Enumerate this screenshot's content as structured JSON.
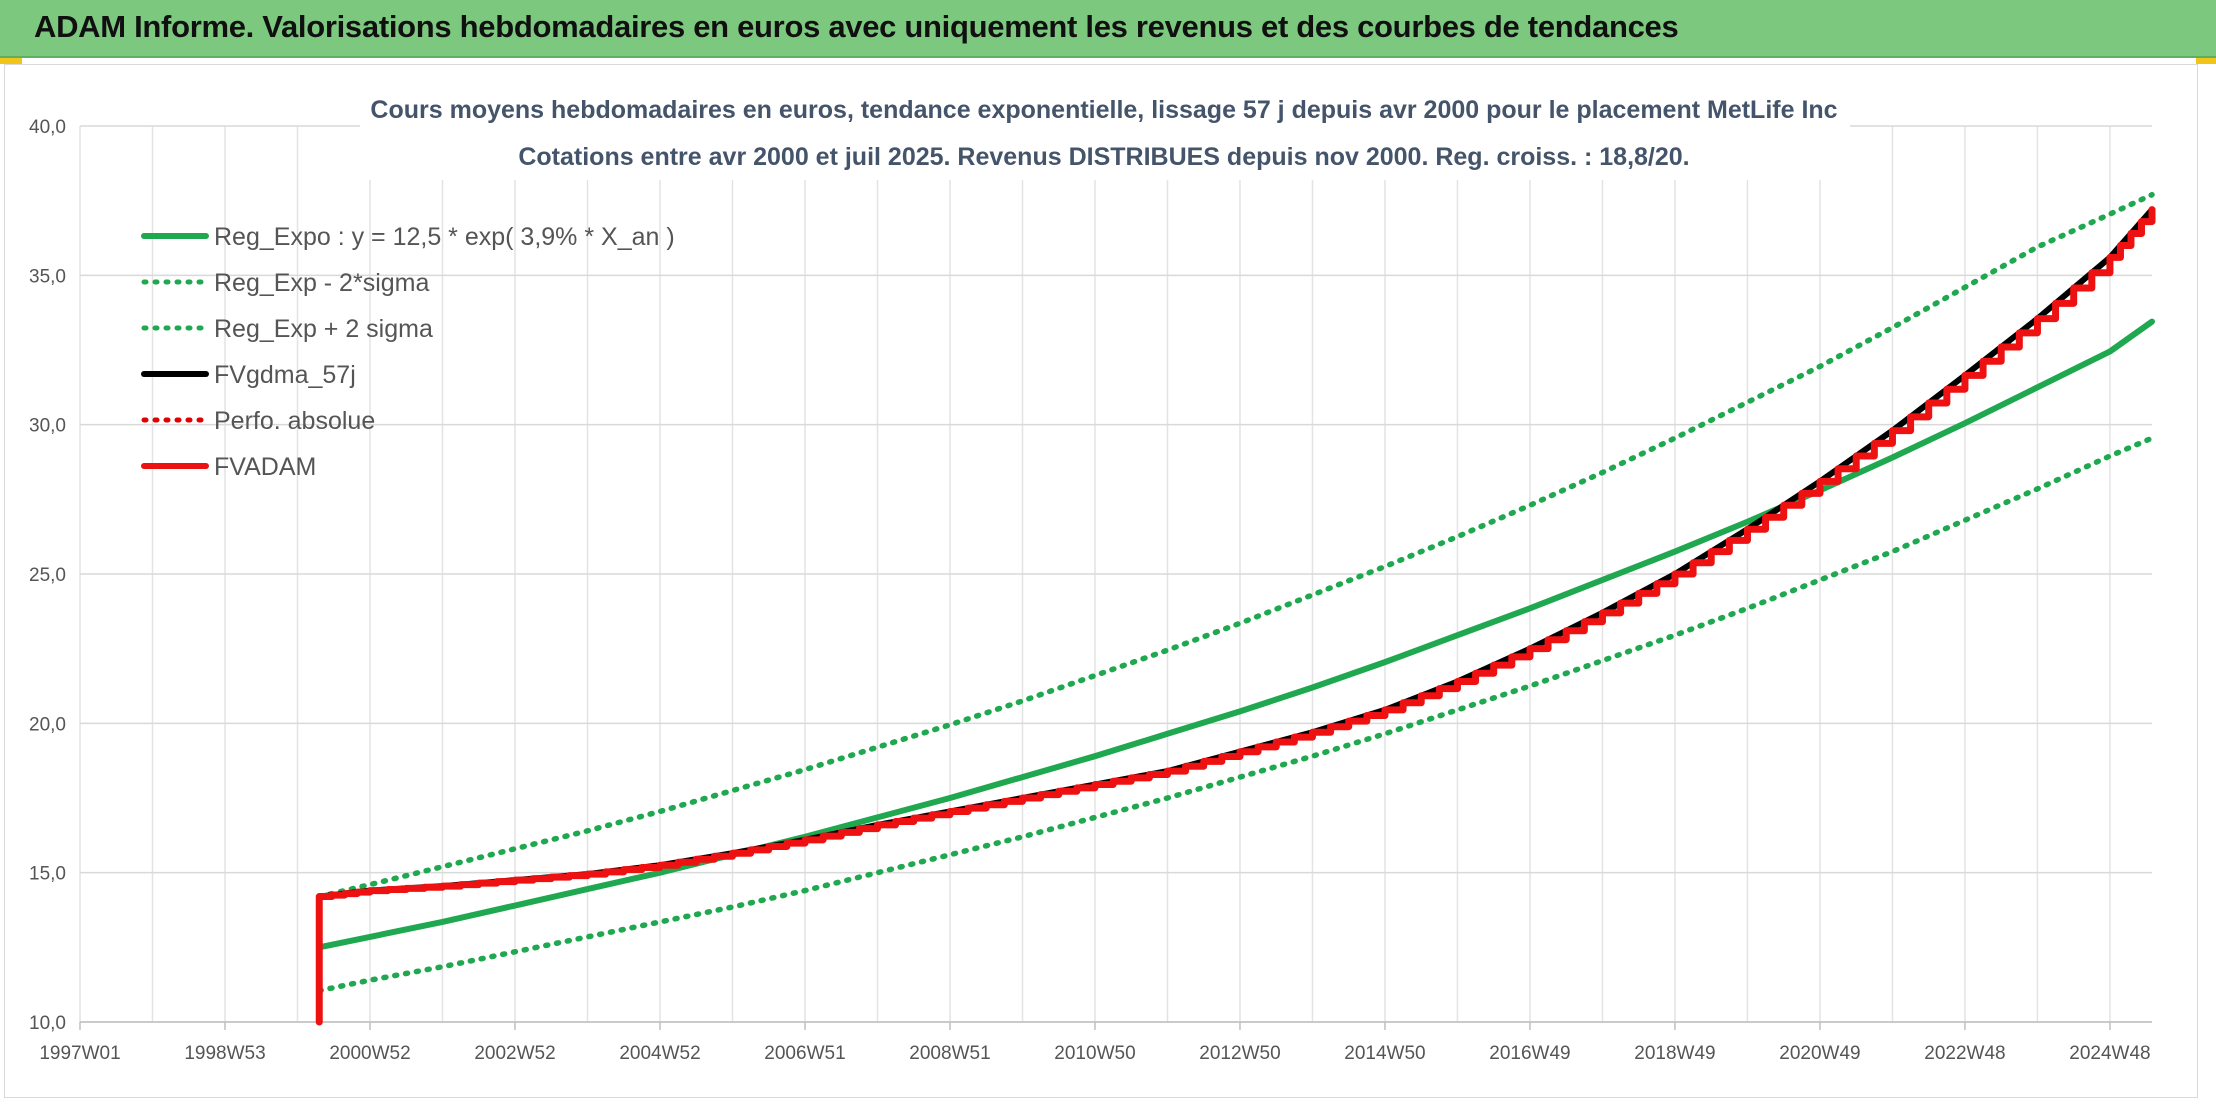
{
  "page": {
    "header_title": "ADAM Informe. Valorisations hebdomadaires en euros avec uniquement les revenus et des courbes de tendances"
  },
  "chart_data": {
    "type": "line",
    "title_line1": "Cours moyens hebdomadaires en euros, tendance exponentielle, lissage 57 j depuis avr 2000 pour le placement MetLife Inc",
    "title_line2": "Cotations entre avr 2000 et juil 2025. Revenus DISTRIBUES depuis nov 2000. Reg. croiss. : 18,8/20.",
    "x_tick_labels": [
      "1997W01",
      "1998W53",
      "2000W52",
      "2002W52",
      "2004W52",
      "2006W51",
      "2008W51",
      "2010W50",
      "2012W50",
      "2014W50",
      "2016W49",
      "2018W49",
      "2020W49",
      "2022W48",
      "2024W48"
    ],
    "x_tick_years": [
      1997.0,
      1999.0,
      2001.0,
      2003.0,
      2005.0,
      2007.0,
      2009.0,
      2011.0,
      2013.0,
      2015.0,
      2017.0,
      2019.0,
      2021.0,
      2023.0,
      2025.0
    ],
    "xlim": [
      1997.0,
      2025.58
    ],
    "ylim": [
      10,
      40
    ],
    "y_ticks": [
      10,
      15,
      20,
      25,
      30,
      35,
      40
    ],
    "y_tick_labels": [
      "10,0",
      "15,0",
      "20,0",
      "25,0",
      "30,0",
      "35,0",
      "40,0"
    ],
    "grid": true,
    "legend_position": "top-left",
    "series": [
      {
        "name": "Reg_Expo : y = 12,5 * exp( 3,9% *  X_an )",
        "style": "solid",
        "color": "#1fa84f",
        "x": [
          2000.3,
          2001,
          2002,
          2003,
          2004,
          2005,
          2006,
          2007,
          2008,
          2009,
          2010,
          2011,
          2012,
          2013,
          2014,
          2015,
          2016,
          2017,
          2018,
          2019,
          2020,
          2021,
          2022,
          2023,
          2024,
          2025,
          2025.58
        ],
        "values": [
          12.5,
          12.85,
          13.35,
          13.9,
          14.45,
          15.0,
          15.6,
          16.2,
          16.85,
          17.5,
          18.2,
          18.9,
          19.65,
          20.4,
          21.2,
          22.05,
          22.95,
          23.85,
          24.8,
          25.75,
          26.75,
          27.8,
          28.9,
          30.05,
          31.25,
          32.45,
          33.45
        ]
      },
      {
        "name": "Reg_Exp - 2*sigma",
        "style": "dotted",
        "color": "#1fa84f",
        "x": [
          2000.3,
          2001,
          2002,
          2003,
          2004,
          2005,
          2006,
          2007,
          2008,
          2009,
          2010,
          2011,
          2012,
          2013,
          2014,
          2015,
          2016,
          2017,
          2018,
          2019,
          2020,
          2021,
          2022,
          2023,
          2024,
          2025,
          2025.58
        ],
        "values": [
          11.05,
          11.4,
          11.85,
          12.35,
          12.85,
          13.35,
          13.85,
          14.4,
          15.0,
          15.6,
          16.2,
          16.85,
          17.5,
          18.2,
          18.9,
          19.65,
          20.45,
          21.25,
          22.1,
          22.95,
          23.85,
          24.8,
          25.75,
          26.8,
          27.85,
          28.95,
          29.55
        ]
      },
      {
        "name": "Reg_Exp + 2 sigma",
        "style": "dotted",
        "color": "#1fa84f",
        "x": [
          2000.3,
          2001,
          2002,
          2003,
          2004,
          2005,
          2006,
          2007,
          2008,
          2009,
          2010,
          2011,
          2012,
          2013,
          2014,
          2015,
          2016,
          2017,
          2018,
          2019,
          2020,
          2021,
          2022,
          2023,
          2024,
          2025,
          2025.58
        ],
        "values": [
          14.2,
          14.6,
          15.2,
          15.8,
          16.4,
          17.05,
          17.75,
          18.45,
          19.2,
          19.95,
          20.75,
          21.6,
          22.45,
          23.35,
          24.3,
          25.25,
          26.25,
          27.3,
          28.4,
          29.55,
          30.75,
          31.95,
          33.25,
          34.6,
          35.95,
          37.05,
          37.7
        ]
      },
      {
        "name": "FVgdma_57j",
        "style": "solid",
        "color": "#000000",
        "x": [
          2000.3,
          2001,
          2002,
          2003,
          2004,
          2005,
          2006,
          2007,
          2008,
          2009,
          2010,
          2011,
          2012,
          2013,
          2014,
          2015,
          2016,
          2017,
          2018,
          2019,
          2020,
          2021,
          2022,
          2023,
          2024,
          2025,
          2025.58
        ],
        "values": [
          14.2,
          14.4,
          14.55,
          14.75,
          14.95,
          15.25,
          15.65,
          16.1,
          16.6,
          17.05,
          17.5,
          17.95,
          18.4,
          19.05,
          19.7,
          20.45,
          21.4,
          22.5,
          23.7,
          25.0,
          26.5,
          28.1,
          29.8,
          31.65,
          33.55,
          35.6,
          37.2
        ]
      },
      {
        "name": "Perfo. absolue",
        "style": "dotted",
        "color": "#e00000",
        "x": [],
        "values": []
      },
      {
        "name": "FVADAM",
        "style": "solid-step",
        "color": "#ee1111",
        "x": [
          2000.3,
          2000.3,
          2001,
          2002,
          2003,
          2004,
          2005,
          2006,
          2007,
          2008,
          2009,
          2010,
          2011,
          2012,
          2013,
          2014,
          2015,
          2016,
          2017,
          2018,
          2019,
          2020,
          2021,
          2022,
          2023,
          2024,
          2025,
          2025.58
        ],
        "values": [
          10.0,
          14.2,
          14.4,
          14.55,
          14.75,
          14.95,
          15.25,
          15.65,
          16.1,
          16.6,
          17.05,
          17.5,
          17.95,
          18.4,
          19.05,
          19.7,
          20.45,
          21.4,
          22.5,
          23.7,
          25.0,
          26.5,
          28.1,
          29.8,
          31.65,
          33.55,
          35.6,
          37.2
        ]
      }
    ]
  }
}
